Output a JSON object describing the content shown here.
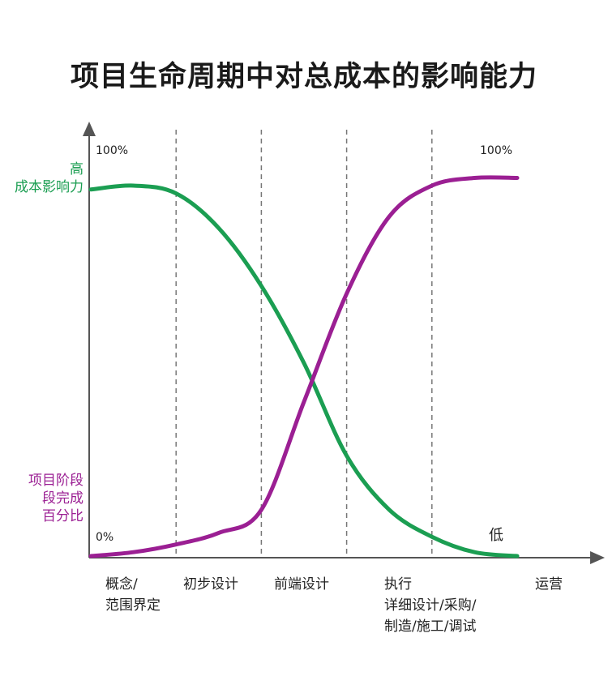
{
  "chart_data": {
    "type": "line",
    "title": "项目生命周期中对总成本的影响能力",
    "x_phases": [
      {
        "label_lines": [
          "概念/",
          "范围界定"
        ]
      },
      {
        "label_lines": [
          "初步设计"
        ]
      },
      {
        "label_lines": [
          "前端设计"
        ]
      },
      {
        "label_lines": [
          "执行",
          "详细设计/采购/",
          "制造/施工/调试"
        ]
      },
      {
        "label_lines": [
          "运营"
        ]
      }
    ],
    "phase_boundaries": [
      1,
      2,
      3,
      4
    ],
    "xlim": [
      0,
      5
    ],
    "ylim": [
      0,
      100
    ],
    "y_top_label": "100%",
    "y_bottom_label": "0%",
    "right_top_label": "100%",
    "low_label": "低",
    "series": [
      {
        "name_lines": [
          "高",
          "成本影响力"
        ],
        "color": "#1b9e52",
        "points": [
          [
            0,
            95
          ],
          [
            0.5,
            96
          ],
          [
            1,
            94
          ],
          [
            1.5,
            85
          ],
          [
            2,
            70
          ],
          [
            2.5,
            50
          ],
          [
            3,
            26
          ],
          [
            3.5,
            12
          ],
          [
            4,
            5
          ],
          [
            4.5,
            1
          ],
          [
            5,
            0
          ]
        ]
      },
      {
        "name_lines": [
          "项目阶段",
          "段完成",
          "百分比"
        ],
        "color": "#9b1f93",
        "points": [
          [
            0,
            0
          ],
          [
            0.5,
            1
          ],
          [
            1,
            3
          ],
          [
            1.5,
            6
          ],
          [
            2,
            12
          ],
          [
            2.5,
            40
          ],
          [
            3,
            68
          ],
          [
            3.5,
            88
          ],
          [
            4,
            96
          ],
          [
            4.5,
            98
          ],
          [
            5,
            98
          ]
        ]
      }
    ],
    "grid": false,
    "gridlines": "vertical dashed at phase boundaries"
  }
}
